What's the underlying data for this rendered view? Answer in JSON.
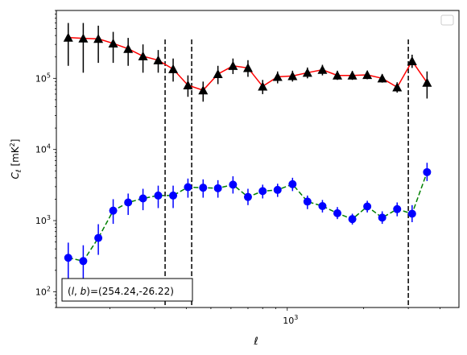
{
  "chart_data": {
    "type": "scatter",
    "title": "",
    "xlabel": "ℓ",
    "ylabel": "C_ℓ  [mK²]",
    "xscale": "log",
    "yscale": "log",
    "xlim": [
      123,
      4750
    ],
    "ylim": [
      60,
      900000
    ],
    "grid": false,
    "legend": {
      "placement": "top-right",
      "entries": []
    },
    "x_tick_labels": [
      {
        "value": 1000,
        "base": "10",
        "exp": "3"
      }
    ],
    "y_tick_labels": [
      {
        "value": 100,
        "base": "10",
        "exp": "2"
      },
      {
        "value": 1000,
        "base": "10",
        "exp": "3"
      },
      {
        "value": 10000,
        "base": "10",
        "exp": "4"
      },
      {
        "value": 100000,
        "base": "10",
        "exp": "5"
      }
    ],
    "vlines": [
      330,
      420,
      3000
    ],
    "annotation": "(l, b)=(254.24,-26.22)",
    "series": [
      {
        "color_line": "#ff0000",
        "color_marker": "#000000",
        "color_error": "#000000",
        "marker": "triangle",
        "linestyle": "solid",
        "points": [
          {
            "x": 137,
            "y": 375000,
            "lo": 150000,
            "hi": 600000
          },
          {
            "x": 157,
            "y": 365000,
            "lo": 120000,
            "hi": 600000
          },
          {
            "x": 180,
            "y": 360000,
            "lo": 165000,
            "hi": 550000
          },
          {
            "x": 206,
            "y": 310000,
            "lo": 165000,
            "hi": 450000
          },
          {
            "x": 236,
            "y": 260000,
            "lo": 150000,
            "hi": 370000
          },
          {
            "x": 270,
            "y": 205000,
            "lo": 120000,
            "hi": 300000
          },
          {
            "x": 310,
            "y": 180000,
            "lo": 120000,
            "hi": 250000
          },
          {
            "x": 355,
            "y": 135000,
            "lo": 90000,
            "hi": 190000
          },
          {
            "x": 406,
            "y": 80000,
            "lo": 55000,
            "hi": 110000
          },
          {
            "x": 466,
            "y": 68000,
            "lo": 47000,
            "hi": 90000
          },
          {
            "x": 533,
            "y": 115000,
            "lo": 83000,
            "hi": 150000
          },
          {
            "x": 611,
            "y": 150000,
            "lo": 115000,
            "hi": 190000
          },
          {
            "x": 700,
            "y": 140000,
            "lo": 105000,
            "hi": 180000
          },
          {
            "x": 800,
            "y": 77000,
            "lo": 60000,
            "hi": 95000
          },
          {
            "x": 916,
            "y": 105000,
            "lo": 85000,
            "hi": 125000
          },
          {
            "x": 1049,
            "y": 108000,
            "lo": 90000,
            "hi": 128000
          },
          {
            "x": 1201,
            "y": 120000,
            "lo": 100000,
            "hi": 142000
          },
          {
            "x": 1376,
            "y": 132000,
            "lo": 110000,
            "hi": 155000
          },
          {
            "x": 1576,
            "y": 110000,
            "lo": 95000,
            "hi": 128000
          },
          {
            "x": 1805,
            "y": 110000,
            "lo": 95000,
            "hi": 127000
          },
          {
            "x": 2067,
            "y": 112000,
            "lo": 97000,
            "hi": 128000
          },
          {
            "x": 2367,
            "y": 100000,
            "lo": 87000,
            "hi": 115000
          },
          {
            "x": 2711,
            "y": 75000,
            "lo": 63000,
            "hi": 88000
          },
          {
            "x": 3105,
            "y": 175000,
            "lo": 140000,
            "hi": 215000
          },
          {
            "x": 3556,
            "y": 87000,
            "lo": 52000,
            "hi": 125000
          }
        ]
      },
      {
        "color_line": "#008000",
        "color_marker": "#0000ff",
        "color_error": "#0000ff",
        "marker": "circle",
        "linestyle": "dashed",
        "points": [
          {
            "x": 137,
            "y": 300,
            "lo": 150,
            "hi": 490
          },
          {
            "x": 157,
            "y": 270,
            "lo": 150,
            "hi": 450
          },
          {
            "x": 180,
            "y": 570,
            "lo": 330,
            "hi": 890
          },
          {
            "x": 206,
            "y": 1380,
            "lo": 900,
            "hi": 2000
          },
          {
            "x": 236,
            "y": 1800,
            "lo": 1200,
            "hi": 2400
          },
          {
            "x": 270,
            "y": 2050,
            "lo": 1400,
            "hi": 2800
          },
          {
            "x": 310,
            "y": 2250,
            "lo": 1500,
            "hi": 3100
          },
          {
            "x": 355,
            "y": 2250,
            "lo": 1500,
            "hi": 3100
          },
          {
            "x": 406,
            "y": 2950,
            "lo": 2100,
            "hi": 3900
          },
          {
            "x": 466,
            "y": 2900,
            "lo": 2100,
            "hi": 3800
          },
          {
            "x": 533,
            "y": 2850,
            "lo": 2100,
            "hi": 3700
          },
          {
            "x": 611,
            "y": 3200,
            "lo": 2400,
            "hi": 4200
          },
          {
            "x": 700,
            "y": 2150,
            "lo": 1650,
            "hi": 2800
          },
          {
            "x": 800,
            "y": 2600,
            "lo": 2050,
            "hi": 3200
          },
          {
            "x": 916,
            "y": 2700,
            "lo": 2150,
            "hi": 3300
          },
          {
            "x": 1049,
            "y": 3250,
            "lo": 2600,
            "hi": 4000
          },
          {
            "x": 1201,
            "y": 1850,
            "lo": 1450,
            "hi": 2250
          },
          {
            "x": 1376,
            "y": 1600,
            "lo": 1300,
            "hi": 1950
          },
          {
            "x": 1576,
            "y": 1270,
            "lo": 1050,
            "hi": 1550
          },
          {
            "x": 1805,
            "y": 1050,
            "lo": 880,
            "hi": 1250
          },
          {
            "x": 2067,
            "y": 1580,
            "lo": 1300,
            "hi": 1900
          },
          {
            "x": 2367,
            "y": 1100,
            "lo": 900,
            "hi": 1350
          },
          {
            "x": 2711,
            "y": 1450,
            "lo": 1150,
            "hi": 1800
          },
          {
            "x": 3105,
            "y": 1250,
            "lo": 950,
            "hi": 1650
          },
          {
            "x": 3556,
            "y": 4800,
            "lo": 3600,
            "hi": 6500
          }
        ]
      }
    ]
  }
}
